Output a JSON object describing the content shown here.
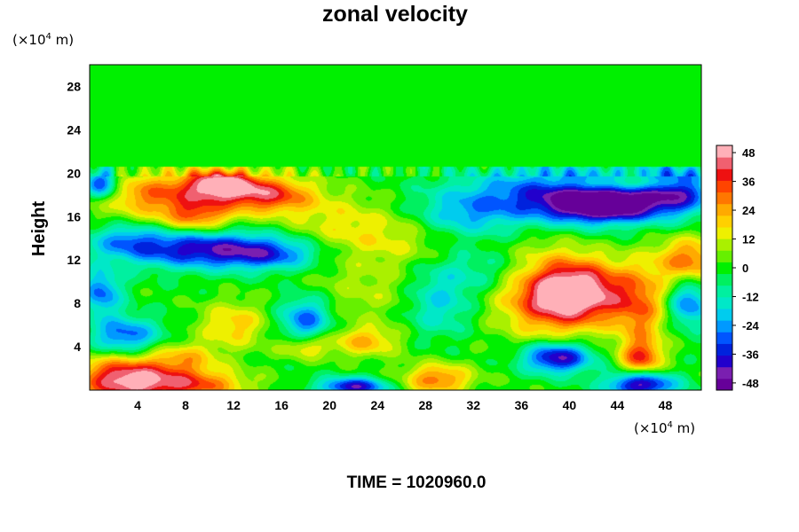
{
  "chart_data": {
    "type": "heatmap",
    "title": "zonal velocity",
    "ylabel": "Height",
    "xlabel": "",
    "x_unit": {
      "prefix": "(×10",
      "exp": "4",
      "suffix": " m)"
    },
    "y_unit": {
      "prefix": "(×10",
      "exp": "4",
      "suffix": " m)"
    },
    "xlim": [
      0,
      51
    ],
    "ylim": [
      0,
      30
    ],
    "x_ticks": [
      4,
      8,
      12,
      16,
      20,
      24,
      28,
      32,
      36,
      40,
      44,
      48
    ],
    "y_ticks": [
      4,
      8,
      12,
      16,
      20,
      24,
      28
    ],
    "colorbar": {
      "range": [
        -51,
        51
      ],
      "ticks": [
        48,
        36,
        24,
        12,
        0,
        -12,
        -24,
        -36,
        -48
      ],
      "colors_low_to_high": [
        "#660099",
        "#7a1fb0",
        "#2200cc",
        "#0022dd",
        "#0055ff",
        "#0099ff",
        "#00ccee",
        "#00e8c8",
        "#00f0a0",
        "#00f060",
        "#00f000",
        "#66f000",
        "#aaf000",
        "#eef000",
        "#ffd000",
        "#ffaa00",
        "#ff7700",
        "#ff4400",
        "#ee1111",
        "#f06070",
        "#ffb0b8"
      ]
    },
    "field": {
      "background_value": 0,
      "features": [
        {
          "x": 3,
          "y": 1,
          "value": 48,
          "sx": 3,
          "sy": 1.5
        },
        {
          "x": 9,
          "y": 0.5,
          "value": 30,
          "sx": 3,
          "sy": 1
        },
        {
          "x": 6,
          "y": 18,
          "value": 30,
          "sx": 4,
          "sy": 1.5
        },
        {
          "x": 11,
          "y": 19,
          "value": 42,
          "sx": 2,
          "sy": 1
        },
        {
          "x": 15,
          "y": 18,
          "value": 35,
          "sx": 2.5,
          "sy": 1.2
        },
        {
          "x": 9,
          "y": 16,
          "value": 25,
          "sx": 2,
          "sy": 1
        },
        {
          "x": 1,
          "y": 19,
          "value": -40,
          "sx": 1,
          "sy": 1
        },
        {
          "x": 3,
          "y": 14,
          "value": -15,
          "sx": 2,
          "sy": 1
        },
        {
          "x": 9,
          "y": 13,
          "value": -38,
          "sx": 5,
          "sy": 1.2
        },
        {
          "x": 15,
          "y": 12.5,
          "value": -22,
          "sx": 3,
          "sy": 1
        },
        {
          "x": 40,
          "y": 18,
          "value": -38,
          "sx": 6,
          "sy": 1.8
        },
        {
          "x": 43,
          "y": 17,
          "value": -42,
          "sx": 3,
          "sy": 1
        },
        {
          "x": 49,
          "y": 18.5,
          "value": -32,
          "sx": 2,
          "sy": 1.5
        },
        {
          "x": 45,
          "y": 19,
          "value": 18,
          "sx": 4,
          "sy": 0.5
        },
        {
          "x": 41,
          "y": 9,
          "value": 46,
          "sx": 3,
          "sy": 2
        },
        {
          "x": 38,
          "y": 9,
          "value": 28,
          "sx": 3,
          "sy": 3
        },
        {
          "x": 46,
          "y": 7,
          "value": 24,
          "sx": 1.5,
          "sy": 3
        },
        {
          "x": 46,
          "y": 3,
          "value": 28,
          "sx": 1.2,
          "sy": 1
        },
        {
          "x": 50,
          "y": 12,
          "value": 30,
          "sx": 2,
          "sy": 1.5
        },
        {
          "x": 50,
          "y": 8,
          "value": -28,
          "sx": 1.2,
          "sy": 1.5
        },
        {
          "x": 39,
          "y": 3,
          "value": -45,
          "sx": 2,
          "sy": 1
        },
        {
          "x": 46,
          "y": 0.5,
          "value": -45,
          "sx": 2,
          "sy": 0.8
        },
        {
          "x": 18,
          "y": 6.5,
          "value": -30,
          "sx": 1.5,
          "sy": 1.5
        },
        {
          "x": 29,
          "y": 8,
          "value": -20,
          "sx": 2,
          "sy": 2
        },
        {
          "x": 23,
          "y": 4.5,
          "value": 22,
          "sx": 2,
          "sy": 1
        },
        {
          "x": 18,
          "y": 4,
          "value": 20,
          "sx": 1.5,
          "sy": 0.8
        },
        {
          "x": 29,
          "y": 1,
          "value": 30,
          "sx": 2,
          "sy": 1
        },
        {
          "x": 22,
          "y": 0.3,
          "value": -40,
          "sx": 2,
          "sy": 0.6
        },
        {
          "x": 3,
          "y": 5,
          "value": -30,
          "sx": 2,
          "sy": 1.2
        },
        {
          "x": 1,
          "y": 9,
          "value": -28,
          "sx": 1.2,
          "sy": 1.5
        },
        {
          "x": 12,
          "y": 6,
          "value": 20,
          "sx": 2,
          "sy": 1.5
        },
        {
          "x": 8,
          "y": 3,
          "value": 18,
          "sx": 2,
          "sy": 1
        },
        {
          "x": 25,
          "y": 14,
          "value": 14,
          "sx": 4,
          "sy": 2
        },
        {
          "x": 31,
          "y": 16,
          "value": -18,
          "sx": 3,
          "sy": 1.5
        },
        {
          "x": 20,
          "y": 16,
          "value": 10,
          "sx": 3,
          "sy": 2
        },
        {
          "x": 33,
          "y": 11,
          "value": -14,
          "sx": 4,
          "sy": 1.5
        },
        {
          "x": 24,
          "y": 9,
          "value": 10,
          "sx": 4,
          "sy": 2
        }
      ]
    }
  },
  "time_label": "TIME = 1020960.0"
}
